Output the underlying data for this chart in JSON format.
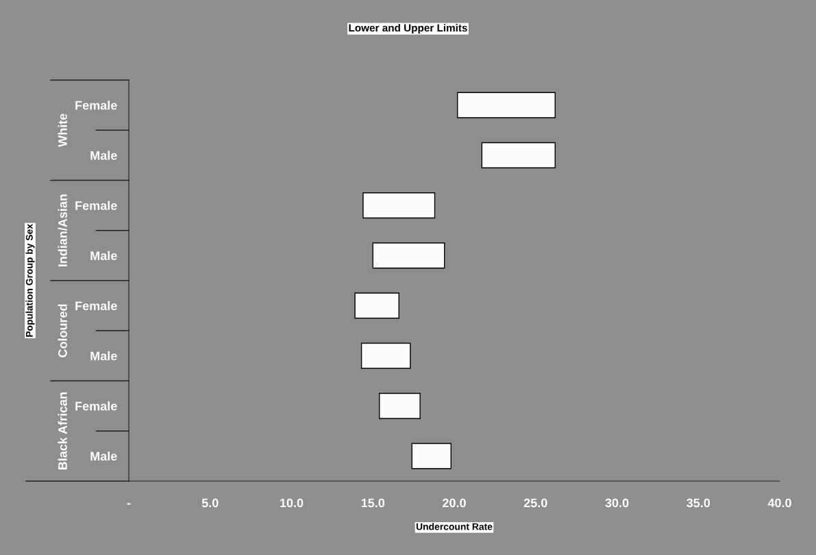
{
  "chart_data": {
    "type": "bar",
    "orientation": "horizontal",
    "title": "Lower and Upper Limits",
    "xlabel": "Undercount Rate",
    "ylabel": "Population Group by Sex",
    "categories": [
      "Female",
      "Male",
      "Female",
      "Male",
      "Female",
      "Male",
      "Female",
      "Male"
    ],
    "annotations": [
      "White",
      "Indian/Asian",
      "Coloured",
      "Black African"
    ],
    "base": [
      20.2,
      21.7,
      14.4,
      15.0,
      13.9,
      14.3,
      15.4,
      17.4
    ],
    "values": [
      6.0,
      4.5,
      4.4,
      4.4,
      2.7,
      3.0,
      2.5,
      2.4
    ],
    "color": "#fcfcfc",
    "xlim": [
      0,
      40
    ],
    "xticks": [
      {
        "value": 0,
        "label": "-"
      },
      {
        "value": 5,
        "label": "5.0"
      },
      {
        "value": 10,
        "label": "10.0"
      },
      {
        "value": 15,
        "label": "15.0"
      },
      {
        "value": 20,
        "label": "20.0"
      },
      {
        "value": 25,
        "label": "25.0"
      },
      {
        "value": 30,
        "label": "30.0"
      },
      {
        "value": 35,
        "label": "35.0"
      },
      {
        "value": 40,
        "label": "40.0"
      }
    ],
    "grid": false
  }
}
